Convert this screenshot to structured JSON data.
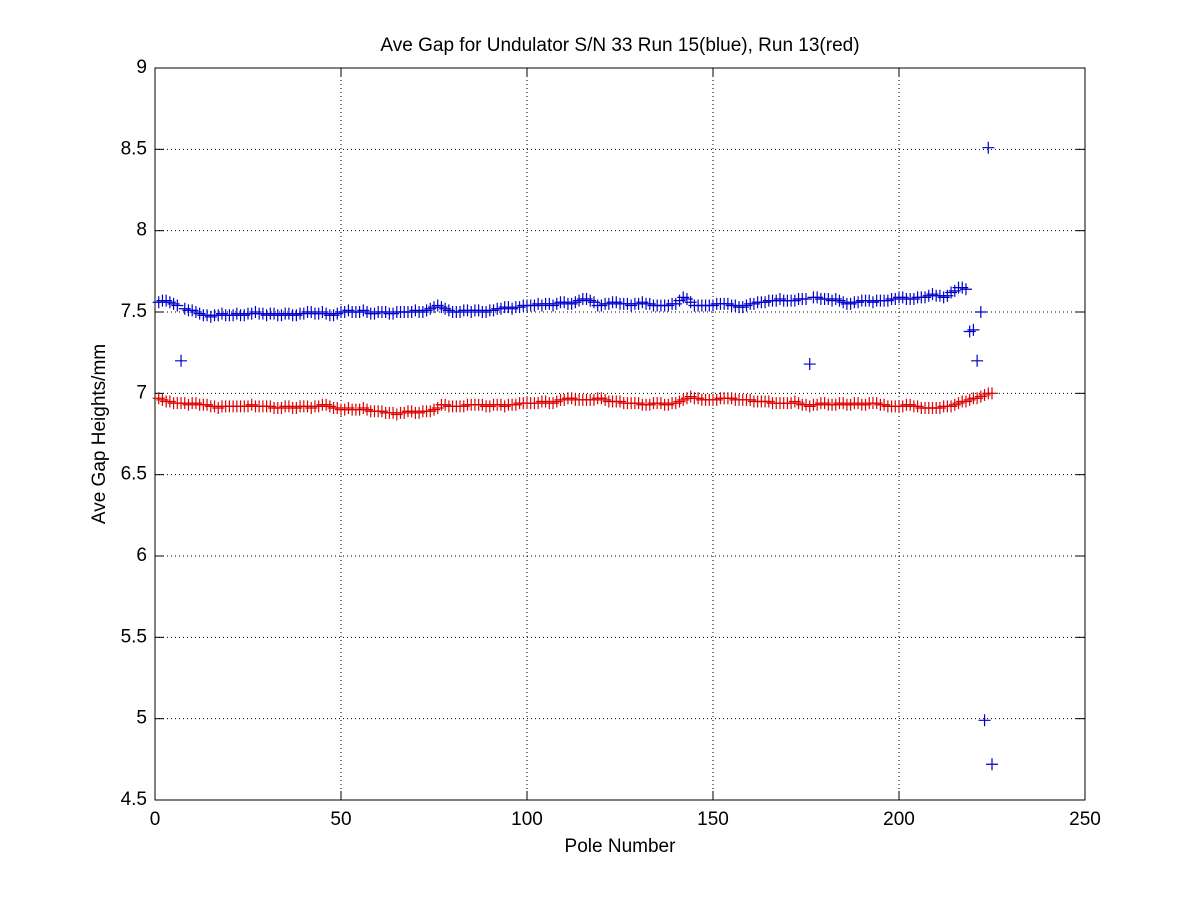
{
  "chart_data": {
    "type": "scatter",
    "title": "Ave Gap for Undulator S/N 33 Run 15(blue), Run 13(red)",
    "x_label": "Pole Number",
    "y_label": "Ave Gap Heights/mm",
    "xlim": [
      0,
      250
    ],
    "xticks": [
      0,
      50,
      100,
      150,
      200,
      250
    ],
    "ylim": [
      4.5,
      9
    ],
    "yticks": [
      4.5,
      5,
      5.5,
      6,
      6.5,
      7,
      7.5,
      8,
      8.5,
      9
    ],
    "grid": true,
    "marker": "+",
    "x": [
      1,
      2,
      3,
      4,
      5,
      6,
      7,
      8,
      9,
      10,
      11,
      12,
      13,
      14,
      15,
      16,
      17,
      18,
      19,
      20,
      21,
      22,
      23,
      24,
      25,
      26,
      27,
      28,
      29,
      30,
      31,
      32,
      33,
      34,
      35,
      36,
      37,
      38,
      39,
      40,
      41,
      42,
      43,
      44,
      45,
      46,
      47,
      48,
      49,
      50,
      51,
      52,
      53,
      54,
      55,
      56,
      57,
      58,
      59,
      60,
      61,
      62,
      63,
      64,
      65,
      66,
      67,
      68,
      69,
      70,
      71,
      72,
      73,
      74,
      75,
      76,
      77,
      78,
      79,
      80,
      81,
      82,
      83,
      84,
      85,
      86,
      87,
      88,
      89,
      90,
      91,
      92,
      93,
      94,
      95,
      96,
      97,
      98,
      99,
      100,
      101,
      102,
      103,
      104,
      105,
      106,
      107,
      108,
      109,
      110,
      111,
      112,
      113,
      114,
      115,
      116,
      117,
      118,
      119,
      120,
      121,
      122,
      123,
      124,
      125,
      126,
      127,
      128,
      129,
      130,
      131,
      132,
      133,
      134,
      135,
      136,
      137,
      138,
      139,
      140,
      141,
      142,
      143,
      144,
      145,
      146,
      147,
      148,
      149,
      150,
      151,
      152,
      153,
      154,
      155,
      156,
      157,
      158,
      159,
      160,
      161,
      162,
      163,
      164,
      165,
      166,
      167,
      168,
      169,
      170,
      171,
      172,
      173,
      174,
      175,
      176,
      177,
      178,
      179,
      180,
      181,
      182,
      183,
      184,
      185,
      186,
      187,
      188,
      189,
      190,
      191,
      192,
      193,
      194,
      195,
      196,
      197,
      198,
      199,
      200,
      201,
      202,
      203,
      204,
      205,
      206,
      207,
      208,
      209,
      210,
      211,
      212,
      213,
      214,
      215,
      216,
      217,
      218,
      219,
      220,
      221,
      222,
      223,
      224,
      225
    ],
    "series": [
      {
        "color": "#0000cc",
        "values": [
          7.56,
          7.57,
          7.57,
          7.56,
          7.55,
          7.54,
          7.2,
          7.52,
          7.51,
          7.51,
          7.5,
          7.49,
          7.48,
          7.48,
          7.47,
          7.48,
          7.48,
          7.49,
          7.48,
          7.48,
          7.48,
          7.49,
          7.48,
          7.48,
          7.49,
          7.49,
          7.5,
          7.49,
          7.49,
          7.48,
          7.49,
          7.49,
          7.48,
          7.48,
          7.49,
          7.49,
          7.48,
          7.48,
          7.49,
          7.49,
          7.5,
          7.5,
          7.49,
          7.49,
          7.5,
          7.49,
          7.48,
          7.48,
          7.49,
          7.5,
          7.5,
          7.51,
          7.5,
          7.5,
          7.5,
          7.51,
          7.5,
          7.49,
          7.49,
          7.5,
          7.5,
          7.5,
          7.49,
          7.49,
          7.5,
          7.5,
          7.5,
          7.5,
          7.5,
          7.51,
          7.5,
          7.5,
          7.51,
          7.52,
          7.53,
          7.54,
          7.53,
          7.52,
          7.51,
          7.5,
          7.5,
          7.5,
          7.51,
          7.51,
          7.5,
          7.51,
          7.51,
          7.5,
          7.5,
          7.51,
          7.51,
          7.52,
          7.52,
          7.53,
          7.53,
          7.52,
          7.53,
          7.53,
          7.54,
          7.54,
          7.54,
          7.54,
          7.55,
          7.54,
          7.55,
          7.55,
          7.54,
          7.55,
          7.56,
          7.56,
          7.55,
          7.55,
          7.56,
          7.57,
          7.58,
          7.58,
          7.57,
          7.56,
          7.54,
          7.54,
          7.55,
          7.55,
          7.56,
          7.56,
          7.55,
          7.55,
          7.55,
          7.54,
          7.55,
          7.55,
          7.56,
          7.55,
          7.55,
          7.54,
          7.54,
          7.54,
          7.54,
          7.54,
          7.55,
          7.55,
          7.57,
          7.59,
          7.58,
          7.56,
          7.54,
          7.54,
          7.54,
          7.54,
          7.54,
          7.54,
          7.55,
          7.55,
          7.55,
          7.55,
          7.54,
          7.54,
          7.53,
          7.53,
          7.54,
          7.55,
          7.55,
          7.56,
          7.56,
          7.56,
          7.57,
          7.57,
          7.57,
          7.58,
          7.57,
          7.57,
          7.57,
          7.57,
          7.58,
          7.58,
          7.58,
          7.18,
          7.59,
          7.59,
          7.58,
          7.58,
          7.58,
          7.57,
          7.58,
          7.57,
          7.56,
          7.55,
          7.55,
          7.56,
          7.56,
          7.57,
          7.57,
          7.57,
          7.56,
          7.57,
          7.57,
          7.57,
          7.57,
          7.58,
          7.58,
          7.59,
          7.59,
          7.58,
          7.58,
          7.58,
          7.59,
          7.59,
          7.59,
          7.6,
          7.61,
          7.6,
          7.6,
          7.59,
          7.6,
          7.62,
          7.63,
          7.65,
          7.65,
          7.64,
          7.38,
          7.39,
          7.2,
          7.5,
          4.99,
          8.51,
          4.72
        ]
      },
      {
        "color": "#dd0000",
        "values": [
          6.97,
          6.96,
          6.95,
          6.95,
          6.94,
          6.94,
          6.94,
          6.94,
          6.93,
          6.94,
          6.94,
          6.93,
          6.93,
          6.93,
          6.92,
          6.92,
          6.91,
          6.92,
          6.92,
          6.92,
          6.92,
          6.92,
          6.92,
          6.92,
          6.92,
          6.93,
          6.92,
          6.92,
          6.92,
          6.92,
          6.92,
          6.91,
          6.91,
          6.91,
          6.92,
          6.92,
          6.91,
          6.91,
          6.92,
          6.92,
          6.92,
          6.91,
          6.92,
          6.92,
          6.93,
          6.93,
          6.92,
          6.91,
          6.91,
          6.9,
          6.9,
          6.91,
          6.9,
          6.9,
          6.9,
          6.91,
          6.9,
          6.89,
          6.89,
          6.89,
          6.89,
          6.88,
          6.88,
          6.88,
          6.87,
          6.88,
          6.88,
          6.89,
          6.89,
          6.88,
          6.88,
          6.89,
          6.89,
          6.89,
          6.9,
          6.91,
          6.93,
          6.93,
          6.92,
          6.92,
          6.92,
          6.92,
          6.92,
          6.93,
          6.93,
          6.93,
          6.93,
          6.93,
          6.92,
          6.92,
          6.93,
          6.93,
          6.93,
          6.92,
          6.93,
          6.93,
          6.93,
          6.94,
          6.94,
          6.94,
          6.94,
          6.94,
          6.94,
          6.95,
          6.95,
          6.94,
          6.94,
          6.95,
          6.96,
          6.96,
          6.97,
          6.97,
          6.96,
          6.96,
          6.96,
          6.96,
          6.96,
          6.96,
          6.97,
          6.97,
          6.96,
          6.95,
          6.95,
          6.95,
          6.95,
          6.94,
          6.94,
          6.94,
          6.94,
          6.94,
          6.93,
          6.93,
          6.93,
          6.94,
          6.94,
          6.94,
          6.93,
          6.93,
          6.94,
          6.94,
          6.95,
          6.96,
          6.97,
          6.98,
          6.97,
          6.97,
          6.96,
          6.96,
          6.96,
          6.96,
          6.96,
          6.97,
          6.97,
          6.97,
          6.97,
          6.96,
          6.96,
          6.96,
          6.96,
          6.96,
          6.95,
          6.95,
          6.95,
          6.95,
          6.95,
          6.94,
          6.94,
          6.94,
          6.94,
          6.94,
          6.94,
          6.95,
          6.94,
          6.93,
          6.93,
          6.92,
          6.93,
          6.93,
          6.94,
          6.94,
          6.93,
          6.93,
          6.93,
          6.94,
          6.94,
          6.93,
          6.93,
          6.94,
          6.94,
          6.93,
          6.93,
          6.94,
          6.94,
          6.94,
          6.93,
          6.93,
          6.92,
          6.92,
          6.92,
          6.92,
          6.92,
          6.93,
          6.93,
          6.92,
          6.92,
          6.91,
          6.91,
          6.91,
          6.91,
          6.91,
          6.91,
          6.92,
          6.92,
          6.92,
          6.93,
          6.94,
          6.95,
          6.95,
          6.96,
          6.97,
          6.97,
          6.98,
          6.99,
          7.0,
          7.0
        ]
      }
    ]
  }
}
